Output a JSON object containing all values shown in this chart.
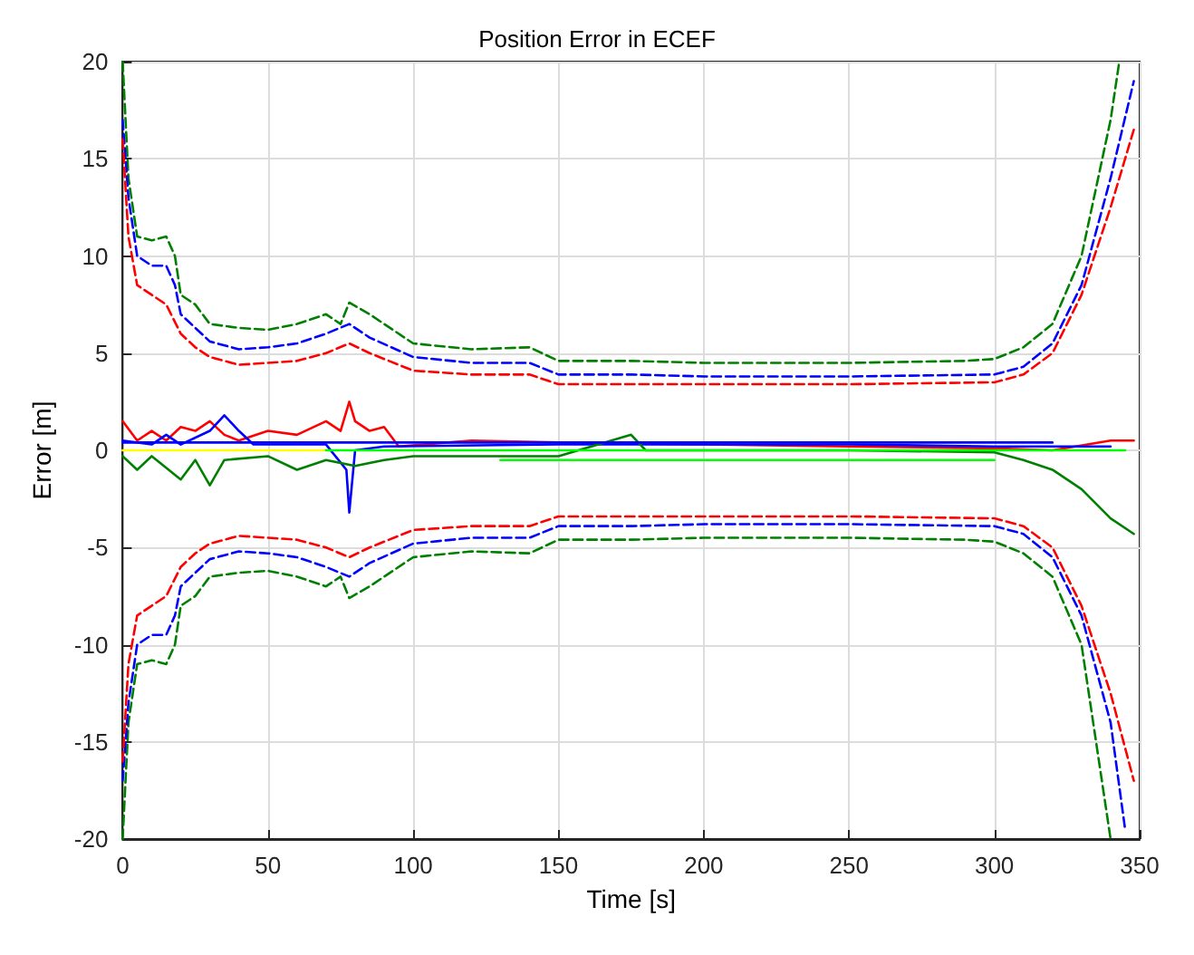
{
  "chart_data": {
    "type": "line",
    "title": "Position Error in ECEF",
    "xlabel": "Time [s]",
    "ylabel": "Error [m]",
    "xlim": [
      0,
      350
    ],
    "ylim": [
      -20,
      20
    ],
    "xticks": [
      0,
      50,
      100,
      150,
      200,
      250,
      300,
      350
    ],
    "yticks": [
      -20,
      -15,
      -10,
      -5,
      0,
      5,
      10,
      15,
      20
    ],
    "grid": true,
    "marker": "none",
    "series": [
      {
        "color": "#008000",
        "line_style": "dashed",
        "x": [
          0,
          2,
          5,
          10,
          15,
          18,
          20,
          25,
          30,
          40,
          50,
          60,
          70,
          75,
          78,
          85,
          90,
          100,
          120,
          140,
          150,
          175,
          200,
          250,
          290,
          300,
          310,
          320,
          330,
          340,
          343
        ],
        "values": [
          20,
          14,
          11,
          10.8,
          11,
          10,
          8,
          7.5,
          6.5,
          6.3,
          6.2,
          6.5,
          7,
          6.5,
          7.6,
          7,
          6.5,
          5.5,
          5.2,
          5.3,
          4.6,
          4.6,
          4.5,
          4.5,
          4.6,
          4.7,
          5.3,
          6.5,
          10,
          17,
          20
        ]
      },
      {
        "color": "#0000ff",
        "line_style": "dashed",
        "x": [
          0,
          2,
          5,
          10,
          15,
          18,
          20,
          25,
          30,
          40,
          50,
          60,
          70,
          78,
          85,
          100,
          120,
          140,
          150,
          175,
          200,
          250,
          300,
          310,
          320,
          330,
          340,
          348
        ],
        "values": [
          17,
          13,
          10,
          9.5,
          9.5,
          8.5,
          7,
          6.3,
          5.6,
          5.2,
          5.3,
          5.5,
          6,
          6.5,
          5.8,
          4.8,
          4.5,
          4.5,
          3.9,
          3.9,
          3.8,
          3.8,
          3.9,
          4.3,
          5.5,
          8.5,
          14,
          19
        ]
      },
      {
        "color": "#ff0000",
        "line_style": "dashed",
        "x": [
          0,
          2,
          5,
          10,
          15,
          20,
          25,
          30,
          40,
          50,
          60,
          70,
          78,
          85,
          100,
          120,
          140,
          150,
          200,
          250,
          300,
          310,
          320,
          330,
          340,
          348
        ],
        "values": [
          16,
          11,
          8.5,
          8,
          7.5,
          6,
          5.3,
          4.8,
          4.4,
          4.5,
          4.6,
          5,
          5.5,
          5,
          4.1,
          3.9,
          3.9,
          3.4,
          3.4,
          3.4,
          3.5,
          3.9,
          5,
          8,
          12.5,
          16.5
        ]
      },
      {
        "color": "#008000",
        "line_style": "dashed",
        "x": [
          0,
          2,
          5,
          10,
          15,
          18,
          20,
          25,
          30,
          40,
          50,
          60,
          70,
          75,
          78,
          85,
          90,
          100,
          120,
          140,
          150,
          175,
          200,
          250,
          290,
          300,
          310,
          320,
          330,
          340
        ],
        "values": [
          -20,
          -14,
          -11,
          -10.8,
          -11,
          -10,
          -8,
          -7.5,
          -6.5,
          -6.3,
          -6.2,
          -6.5,
          -7,
          -6.5,
          -7.6,
          -7,
          -6.5,
          -5.5,
          -5.2,
          -5.3,
          -4.6,
          -4.6,
          -4.5,
          -4.5,
          -4.6,
          -4.7,
          -5.3,
          -6.5,
          -10,
          -20
        ]
      },
      {
        "color": "#0000ff",
        "line_style": "dashed",
        "x": [
          0,
          2,
          5,
          10,
          15,
          18,
          20,
          25,
          30,
          40,
          50,
          60,
          70,
          78,
          85,
          100,
          120,
          140,
          150,
          175,
          200,
          250,
          300,
          310,
          320,
          330,
          340,
          345
        ],
        "values": [
          -17,
          -13,
          -10,
          -9.5,
          -9.5,
          -8.5,
          -7,
          -6.3,
          -5.6,
          -5.2,
          -5.3,
          -5.5,
          -6,
          -6.5,
          -5.8,
          -4.8,
          -4.5,
          -4.5,
          -3.9,
          -3.9,
          -3.8,
          -3.8,
          -3.9,
          -4.3,
          -5.5,
          -8.5,
          -14,
          -19.5
        ]
      },
      {
        "color": "#ff0000",
        "line_style": "dashed",
        "x": [
          0,
          2,
          5,
          10,
          15,
          20,
          25,
          30,
          40,
          50,
          60,
          70,
          78,
          85,
          100,
          120,
          140,
          150,
          200,
          250,
          300,
          310,
          320,
          330,
          340,
          348
        ],
        "values": [
          -16,
          -11,
          -8.5,
          -8,
          -7.5,
          -6,
          -5.3,
          -4.8,
          -4.4,
          -4.5,
          -4.6,
          -5,
          -5.5,
          -5,
          -4.1,
          -3.9,
          -3.9,
          -3.4,
          -3.4,
          -3.4,
          -3.5,
          -3.9,
          -5,
          -8,
          -12.5,
          -17
        ]
      },
      {
        "color": "#ff0000",
        "line_style": "solid",
        "x": [
          0,
          5,
          10,
          15,
          20,
          25,
          30,
          35,
          40,
          50,
          60,
          70,
          75,
          78,
          80,
          85,
          90,
          95,
          120,
          150,
          200,
          250,
          300,
          320,
          340,
          348
        ],
        "values": [
          1.5,
          0.5,
          1,
          0.5,
          1.2,
          1,
          1.5,
          0.8,
          0.5,
          1,
          0.8,
          1.5,
          1,
          2.5,
          1.5,
          1,
          1.2,
          0.2,
          0.5,
          0.4,
          0.3,
          0.2,
          0.1,
          0,
          0.5,
          0.5
        ]
      },
      {
        "color": "#0000ff",
        "line_style": "solid",
        "x": [
          0,
          10,
          15,
          20,
          30,
          35,
          40,
          45,
          70,
          77,
          78,
          80,
          90,
          150,
          200,
          250,
          300,
          340
        ],
        "values": [
          0.5,
          0.3,
          0.8,
          0.3,
          1,
          1.8,
          1,
          0.3,
          0.3,
          -1,
          -3.2,
          0,
          0.2,
          0.3,
          0.3,
          0.3,
          0.2,
          0.2
        ]
      },
      {
        "color": "#008000",
        "line_style": "solid",
        "x": [
          0,
          5,
          10,
          20,
          25,
          30,
          35,
          50,
          60,
          70,
          80,
          90,
          100,
          150,
          175,
          180,
          250,
          300,
          310,
          320,
          330,
          340,
          348
        ],
        "values": [
          -0.3,
          -1,
          -0.3,
          -1.5,
          -0.5,
          -1.8,
          -0.5,
          -0.3,
          -1,
          -0.5,
          -0.8,
          -0.5,
          -0.3,
          -0.3,
          0.8,
          0,
          0,
          -0.1,
          -0.5,
          -1,
          -2,
          -3.5,
          -4.3
        ]
      },
      {
        "color": "#0000ff",
        "line_style": "solid",
        "x": [
          0,
          320
        ],
        "values": [
          0.4,
          0.4
        ]
      },
      {
        "color": "#ffff00",
        "line_style": "solid",
        "x": [
          0,
          70
        ],
        "values": [
          0,
          0
        ]
      },
      {
        "color": "#00ff00",
        "line_style": "solid",
        "x": [
          70,
          345
        ],
        "values": [
          0,
          0
        ]
      },
      {
        "color": "#00ff00",
        "line_style": "solid",
        "x": [
          130,
          300
        ],
        "values": [
          -0.5,
          -0.5
        ]
      }
    ]
  }
}
